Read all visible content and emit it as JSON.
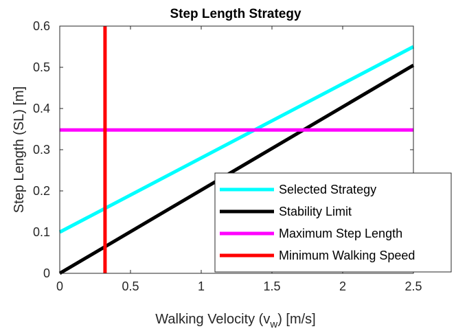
{
  "chart_data": {
    "type": "line",
    "title": "Step Length Strategy",
    "xlabel": "Walking Velocity (v",
    "xlabel_subscript": "w",
    "xlabel_suffix": ") [m/s]",
    "ylabel": "Step Length (SL) [m]",
    "xlim": [
      0,
      2.5
    ],
    "ylim": [
      0,
      0.6
    ],
    "xticks": [
      0,
      0.5,
      1,
      1.5,
      2,
      2.5
    ],
    "xtick_labels": [
      "0",
      "0.5",
      "1",
      "1.5",
      "2",
      "2.5"
    ],
    "yticks": [
      0,
      0.1,
      0.2,
      0.3,
      0.4,
      0.5,
      0.6
    ],
    "ytick_labels": [
      "0",
      "0.1",
      "0.2",
      "0.3",
      "0.4",
      "0.5",
      "0.6"
    ],
    "grid": false,
    "legend_position": "bottom-right",
    "series": [
      {
        "name": "Selected Strategy",
        "color": "#00ffff",
        "x": [
          0,
          2.5
        ],
        "y": [
          0.1,
          0.55
        ]
      },
      {
        "name": "Stability Limit",
        "color": "#000000",
        "x": [
          0,
          2.5
        ],
        "y": [
          0.0,
          0.505
        ]
      },
      {
        "name": "Maximum Step Length",
        "color": "#ff00ff",
        "x": [
          0,
          2.5
        ],
        "y": [
          0.348,
          0.348
        ]
      },
      {
        "name": "Minimum Walking Speed",
        "color": "#ff0000",
        "x": [
          0.32,
          0.32
        ],
        "y": [
          0,
          0.6
        ]
      }
    ]
  }
}
